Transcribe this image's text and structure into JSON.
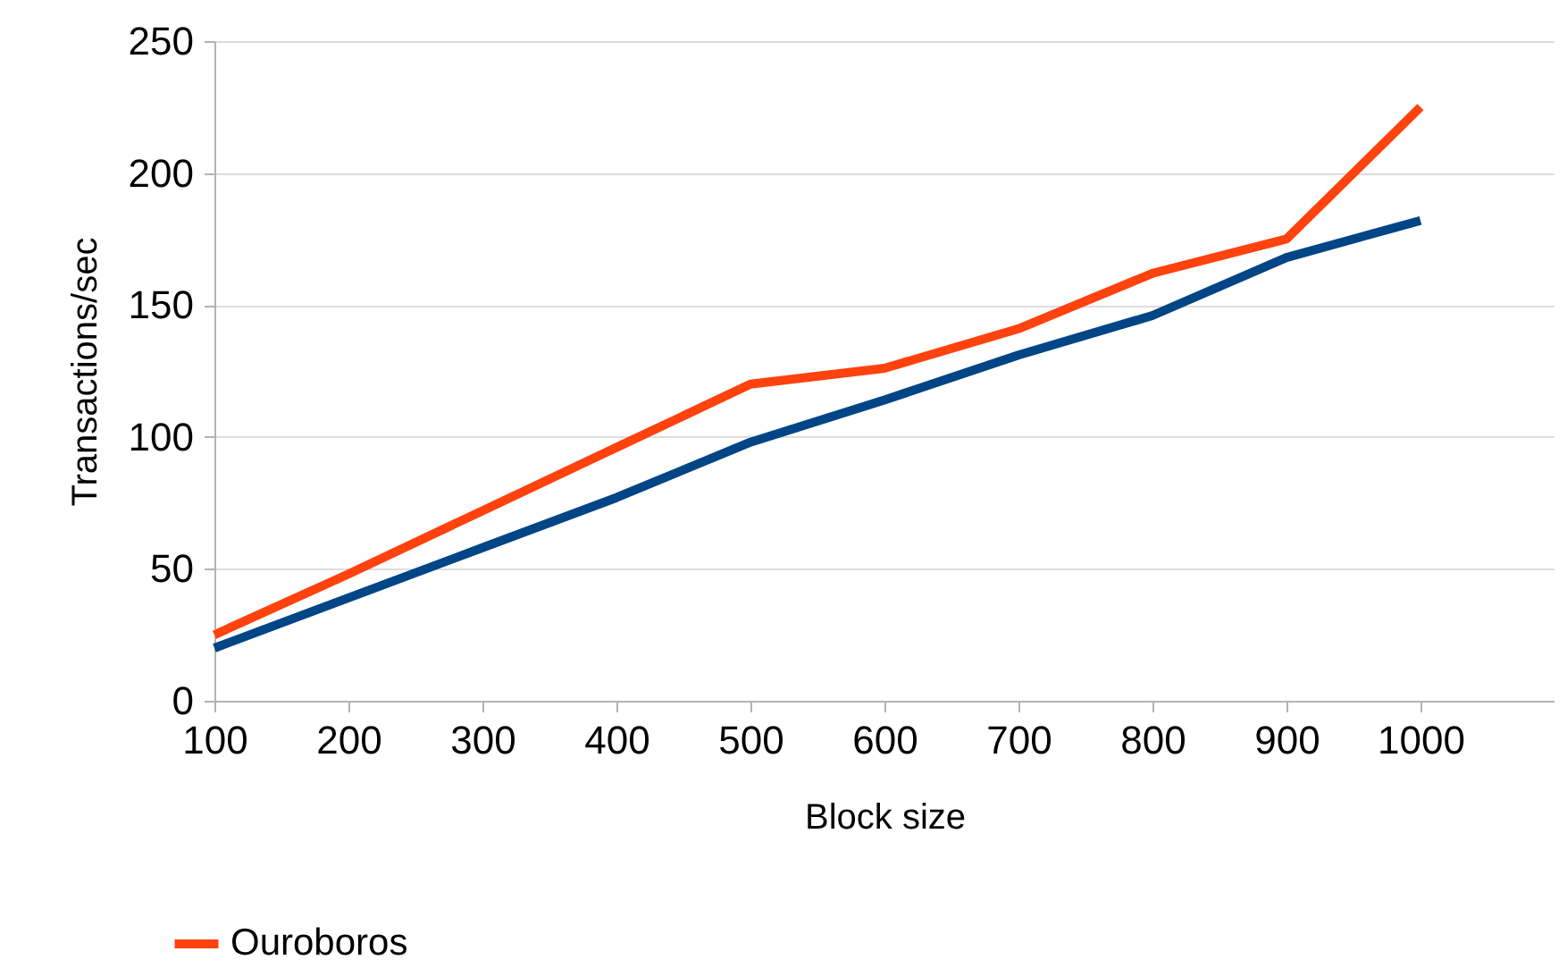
{
  "chart_data": {
    "type": "line",
    "xlabel": "Block size",
    "ylabel": "Transactions/sec",
    "x": [
      100,
      200,
      300,
      400,
      500,
      600,
      700,
      800,
      900,
      1000
    ],
    "series": [
      {
        "color": "#004586",
        "values": [
          20,
          39,
          58,
          77,
          98,
          114,
          131,
          146,
          168,
          182
        ]
      },
      {
        "name": "Ouroboros",
        "color": "#ff420e",
        "values": [
          25,
          48,
          72,
          96,
          120,
          126,
          141,
          162,
          175,
          225
        ]
      }
    ],
    "xlim": [
      100,
      1100
    ],
    "xticks": [
      100,
      200,
      300,
      400,
      500,
      600,
      700,
      800,
      900,
      1000
    ],
    "ylim": [
      0,
      250
    ],
    "yticks": [
      0,
      50,
      100,
      150,
      200,
      250
    ],
    "grid": "y",
    "legend": "bottom left",
    "marker": "none",
    "line_style": "solid"
  }
}
